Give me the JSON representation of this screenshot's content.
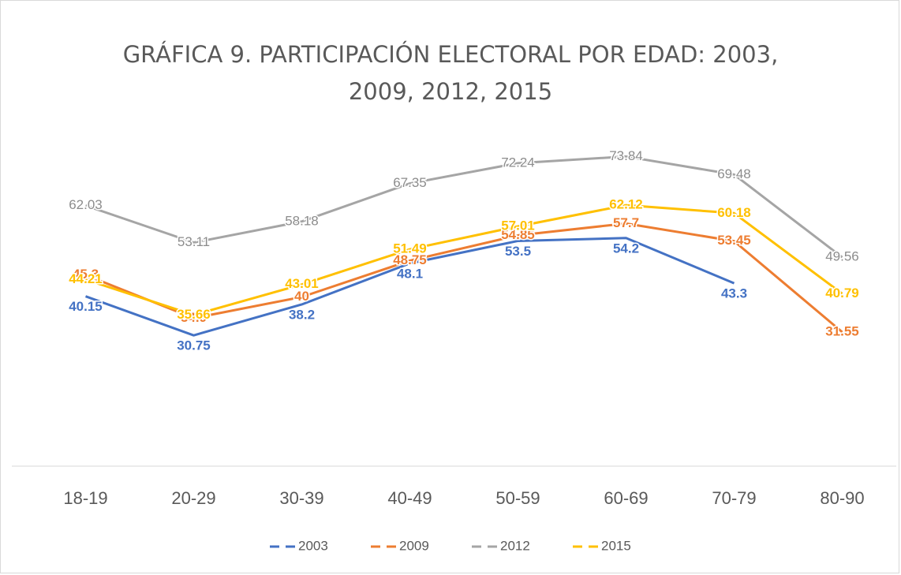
{
  "chart_data": {
    "type": "line",
    "title": "GRÁFICA 9. PARTICIPACIÓN ELECTORAL POR EDAD: 2003, 2009, 2012, 2015",
    "categories": [
      "18-19",
      "20-29",
      "30-39",
      "40-49",
      "50-59",
      "60-69",
      "70-79",
      "80-90"
    ],
    "series": [
      {
        "name": "2003",
        "color": "#4472c4",
        "values": [
          40.15,
          30.75,
          38.2,
          48.1,
          53.5,
          54.2,
          43.3,
          null
        ]
      },
      {
        "name": "2009",
        "color": "#ed7d31",
        "values": [
          45.3,
          34.9,
          40,
          48.75,
          54.85,
          57.7,
          53.45,
          31.55
        ]
      },
      {
        "name": "2012",
        "color": "#a5a5a5",
        "values": [
          62.03,
          53.11,
          58.18,
          67.35,
          72.24,
          73.84,
          69.48,
          49.56
        ]
      },
      {
        "name": "2015",
        "color": "#ffc000",
        "values": [
          44.21,
          35.66,
          43.01,
          51.49,
          57.01,
          62.12,
          60.18,
          40.79
        ]
      }
    ],
    "ylim": [
      0,
      80
    ],
    "legend": "bottom"
  }
}
